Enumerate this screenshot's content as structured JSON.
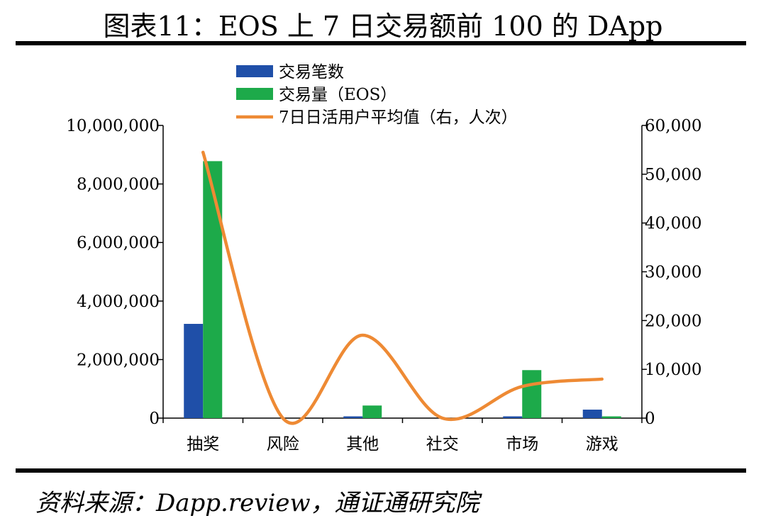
{
  "page": {
    "title": "图表11：EOS 上 7 日交易额前 100 的 DApp",
    "source": "资料来源：Dapp.review，通证通研究院"
  },
  "chart_data": {
    "type": "bar",
    "categories": [
      "抽奖",
      "风险",
      "其他",
      "社交",
      "市场",
      "游戏"
    ],
    "series": [
      {
        "name": "交易笔数",
        "kind": "bar",
        "axis": "left",
        "color": "#1F4FA8",
        "values": [
          3220000,
          0,
          60000,
          0,
          60000,
          290000
        ]
      },
      {
        "name": "交易量（EOS）",
        "kind": "bar",
        "axis": "left",
        "color": "#1DAA4A",
        "values": [
          8780000,
          0,
          430000,
          0,
          1640000,
          60000
        ]
      },
      {
        "name": "7日日活用户平均值（右，人次）",
        "kind": "line",
        "axis": "right",
        "color": "#EE8A34",
        "values": [
          54500,
          0,
          17000,
          0,
          6500,
          8000
        ]
      }
    ],
    "ylim_left": [
      0,
      10000000
    ],
    "ylim_right": [
      0,
      60000
    ],
    "yticks_left": [
      "0",
      "2,000,000",
      "4,000,000",
      "6,000,000",
      "8,000,000",
      "10,000,000"
    ],
    "yticks_right": [
      "0",
      "10,000",
      "20,000",
      "30,000",
      "40,000",
      "50,000",
      "60,000"
    ],
    "grid": false,
    "legend_position": "top-left"
  }
}
